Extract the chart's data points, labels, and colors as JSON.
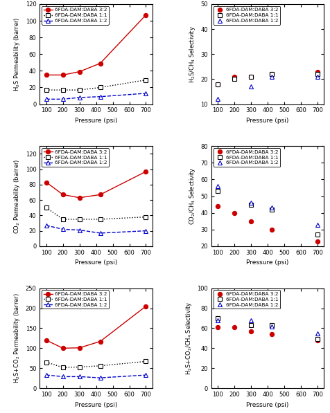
{
  "pressure": [
    100,
    200,
    300,
    425,
    700
  ],
  "a_32": [
    35,
    35,
    39,
    49,
    107
  ],
  "a_11": [
    17,
    17,
    17,
    20,
    29
  ],
  "a_12": [
    6,
    6,
    8,
    9,
    13
  ],
  "b_32": [
    18,
    21,
    21,
    22,
    23
  ],
  "b_11": [
    18,
    20,
    21,
    22,
    22
  ],
  "b_12": [
    12,
    null,
    17,
    21,
    21
  ],
  "c_32": [
    83,
    67,
    63,
    67,
    97
  ],
  "c_11": [
    50,
    35,
    35,
    35,
    38
  ],
  "c_12": [
    27,
    22,
    21,
    17,
    20
  ],
  "d_32": [
    44,
    40,
    35,
    30,
    23
  ],
  "d_11": [
    53,
    null,
    45,
    42,
    27
  ],
  "d_12": [
    56,
    null,
    46,
    43,
    33
  ],
  "e_32": [
    120,
    100,
    101,
    117,
    205
  ],
  "e_11": [
    65,
    52,
    53,
    56,
    67
  ],
  "e_12": [
    33,
    29,
    29,
    26,
    33
  ],
  "f_32": [
    61,
    61,
    57,
    54,
    48
  ],
  "f_11": [
    70,
    null,
    63,
    63,
    49
  ],
  "f_12": [
    68,
    null,
    68,
    62,
    55
  ],
  "color_32": "#cc0000",
  "color_11": "#000000",
  "color_12": "#0000cc",
  "label_32": "6FDA-DAM:DABA 3:2",
  "label_11": "6FDA-DAM:DABA 1:1",
  "label_12": "6FDA-DAM:DABA 1:2",
  "ylim_a": [
    0,
    120
  ],
  "yticks_a": [
    0,
    20,
    40,
    60,
    80,
    100,
    120
  ],
  "ylim_b": [
    10,
    50
  ],
  "yticks_b": [
    10,
    20,
    30,
    40,
    50
  ],
  "ylim_c": [
    0,
    130
  ],
  "yticks_c": [
    0,
    20,
    40,
    60,
    80,
    100,
    120
  ],
  "ylim_d": [
    20,
    80
  ],
  "yticks_d": [
    20,
    30,
    40,
    50,
    60,
    70,
    80
  ],
  "ylim_e": [
    0,
    250
  ],
  "yticks_e": [
    0,
    50,
    100,
    150,
    200,
    250
  ],
  "ylim_f": [
    0,
    100
  ],
  "yticks_f": [
    0,
    20,
    40,
    60,
    80,
    100
  ],
  "xlim": [
    60,
    740
  ],
  "xticks": [
    100,
    200,
    300,
    400,
    500,
    600,
    700
  ],
  "xlabel": "Pressure (psi)",
  "ylabel_a": "H$_2$S Permeability (barrer)",
  "ylabel_b": "H$_2$S/CH$_4$ Selectivity",
  "ylabel_c": "CO$_2$ Permeability (barrer)",
  "ylabel_d": "CO$_2$/CH$_4$ Selectivity",
  "ylabel_e": "H$_2$S+CO$_2$ Permeability (barrer)",
  "ylabel_f": "H$_2$S+CO$_2$/CH$_4$ Selectivity"
}
